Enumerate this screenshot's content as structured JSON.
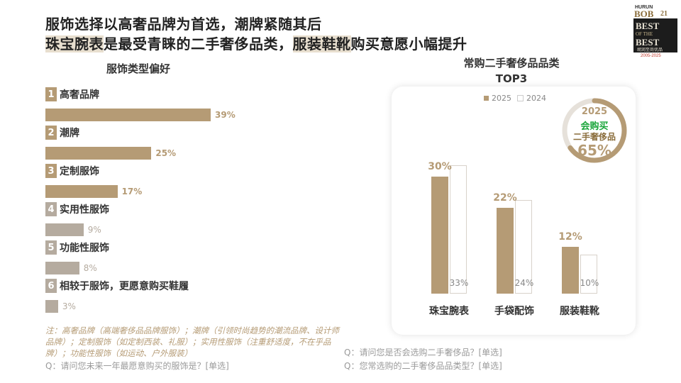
{
  "headline": {
    "line1": "服饰选择以高奢品牌为首选，潮牌紧随其后",
    "line2_hl1": "珠宝腕表",
    "line2_mid": "是最受青睐的二手奢侈品类，",
    "line2_hl2": "服装鞋靴",
    "line2_end": "购买意愿小幅提升"
  },
  "logo": {
    "brand": "HURUN",
    "bob": "BOB",
    "num": "21",
    "best1": "BEST",
    "of": "OF THE",
    "best2": "BEST",
    "cn": "胡润至尚优品",
    "years": "2005-2025"
  },
  "left_chart_title": "服饰类型偏好",
  "right_chart_title_1": "常购二手奢侈品品类",
  "right_chart_title_2": "TOP3",
  "colors": {
    "accent": "#b59b75",
    "muted": "#b5ab9f",
    "green": "#1aa53a"
  },
  "chart_data": [
    {
      "type": "bar",
      "orientation": "horizontal",
      "title": "服饰类型偏好",
      "categories": [
        {
          "rank": "1",
          "label": "高奢品牌",
          "value": 39,
          "display": "39%"
        },
        {
          "rank": "2",
          "label": "潮牌",
          "value": 25,
          "display": "25%"
        },
        {
          "rank": "3",
          "label": "定制服饰",
          "value": 17,
          "display": "17%"
        },
        {
          "rank": "4",
          "label": "实用性服饰",
          "value": 9,
          "display": "9%"
        },
        {
          "rank": "5",
          "label": "功能性服饰",
          "value": 8,
          "display": "8%"
        },
        {
          "rank": "6",
          "label": "相较于服饰，更愿意购买鞋履",
          "value": 3,
          "display": "3%"
        }
      ]
    },
    {
      "type": "bar",
      "title": "常购二手奢侈品品类 TOP3",
      "categories": [
        "珠宝腕表",
        "手袋配饰",
        "服装鞋靴"
      ],
      "series": [
        {
          "name": "2025",
          "values": [
            30,
            22,
            12
          ],
          "display": [
            "30%",
            "22%",
            "12%"
          ]
        },
        {
          "name": "2024",
          "values": [
            33,
            24,
            10
          ],
          "display": [
            "33%",
            "24%",
            "10%"
          ]
        }
      ],
      "legend": "top"
    },
    {
      "type": "pie",
      "title": "2025",
      "label1": "会购买",
      "label2": "二手奢侈品",
      "value": 65,
      "display": "65%"
    }
  ],
  "note": "注：高奢品牌（高端奢侈品品牌服饰）；潮牌（引领时尚趋势的潮流品牌、设计师品牌）；定制服饰（如定制西装、礼服）；实用性服饰（注重舒适度，不在乎品牌）；功能性服饰（如运动、户外服装）",
  "q_left": "Q：请问您未来一年最愿意购买的服饰是？[单选]",
  "q_right_1": "Q：请问您是否会选购二手奢侈品？[单选]",
  "q_right_2": "Q：您常选购的二手奢侈品品类型？[单选]"
}
